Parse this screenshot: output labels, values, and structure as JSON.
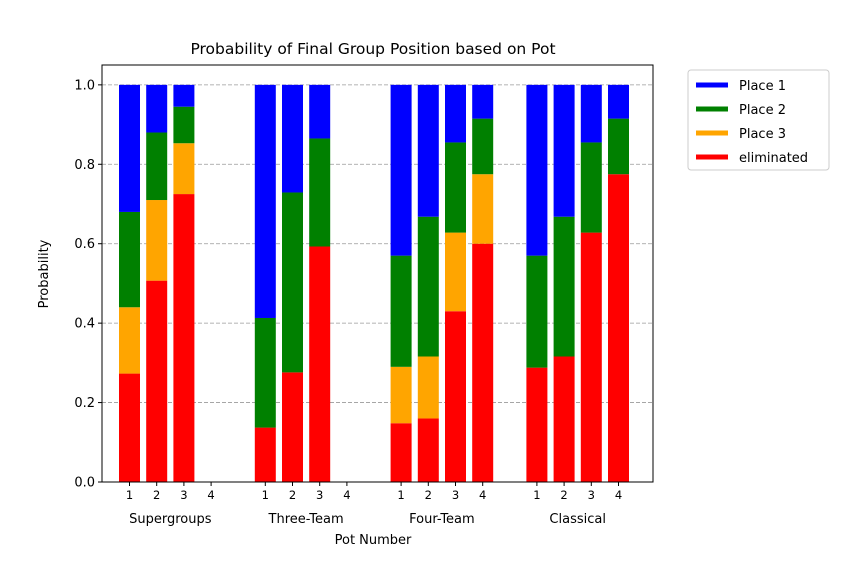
{
  "chart_data": {
    "type": "bar",
    "stacked": true,
    "title": "Probability of Final Group Position based on Pot",
    "xlabel": "Pot Number",
    "ylabel": "Probability",
    "ylim": [
      0,
      1.05
    ],
    "yticks": [
      "0.0",
      "0.2",
      "0.4",
      "0.6",
      "0.8",
      "1.0"
    ],
    "grid": "horizontal dashed",
    "legend_position": "outside upper-right",
    "pot_labels": [
      "1",
      "2",
      "3",
      "4"
    ],
    "groups": [
      {
        "name": "Supergroups",
        "pots": [
          {
            "pot": "1",
            "eliminated": 0.273,
            "place3": 0.167,
            "place2": 0.24,
            "place1": 0.32
          },
          {
            "pot": "2",
            "eliminated": 0.507,
            "place3": 0.203,
            "place2": 0.17,
            "place1": 0.12
          },
          {
            "pot": "3",
            "eliminated": 0.725,
            "place3": 0.128,
            "place2": 0.092,
            "place1": 0.055
          },
          null
        ]
      },
      {
        "name": "Three-Team",
        "pots": [
          {
            "pot": "1",
            "eliminated": 0.137,
            "place3": 0.0,
            "place2": 0.276,
            "place1": 0.587
          },
          {
            "pot": "2",
            "eliminated": 0.276,
            "place3": 0.0,
            "place2": 0.453,
            "place1": 0.271
          },
          {
            "pot": "3",
            "eliminated": 0.593,
            "place3": 0.0,
            "place2": 0.272,
            "place1": 0.135
          },
          null
        ]
      },
      {
        "name": "Four-Team",
        "pots": [
          {
            "pot": "1",
            "eliminated": 0.148,
            "place3": 0.142,
            "place2": 0.28,
            "place1": 0.43
          },
          {
            "pot": "2",
            "eliminated": 0.16,
            "place3": 0.156,
            "place2": 0.352,
            "place1": 0.332
          },
          {
            "pot": "3",
            "eliminated": 0.43,
            "place3": 0.198,
            "place2": 0.227,
            "place1": 0.145
          },
          {
            "pot": "4",
            "eliminated": 0.6,
            "place3": 0.175,
            "place2": 0.14,
            "place1": 0.085
          }
        ]
      },
      {
        "name": "Classical",
        "pots": [
          {
            "pot": "1",
            "eliminated": 0.288,
            "place3": 0.0,
            "place2": 0.282,
            "place1": 0.43
          },
          {
            "pot": "2",
            "eliminated": 0.316,
            "place3": 0.0,
            "place2": 0.352,
            "place1": 0.332
          },
          {
            "pot": "3",
            "eliminated": 0.628,
            "place3": 0.0,
            "place2": 0.227,
            "place1": 0.145
          },
          {
            "pot": "4",
            "eliminated": 0.775,
            "place3": 0.0,
            "place2": 0.14,
            "place1": 0.085
          }
        ]
      }
    ],
    "series": [
      {
        "key": "place1",
        "name": "Place 1",
        "color": "#0000ff"
      },
      {
        "key": "place2",
        "name": "Place 2",
        "color": "#008000"
      },
      {
        "key": "place3",
        "name": "Place 3",
        "color": "#ffa500"
      },
      {
        "key": "eliminated",
        "name": "eliminated",
        "color": "#ff0000"
      }
    ],
    "stack_order": [
      "eliminated",
      "place3",
      "place2",
      "place1"
    ]
  }
}
